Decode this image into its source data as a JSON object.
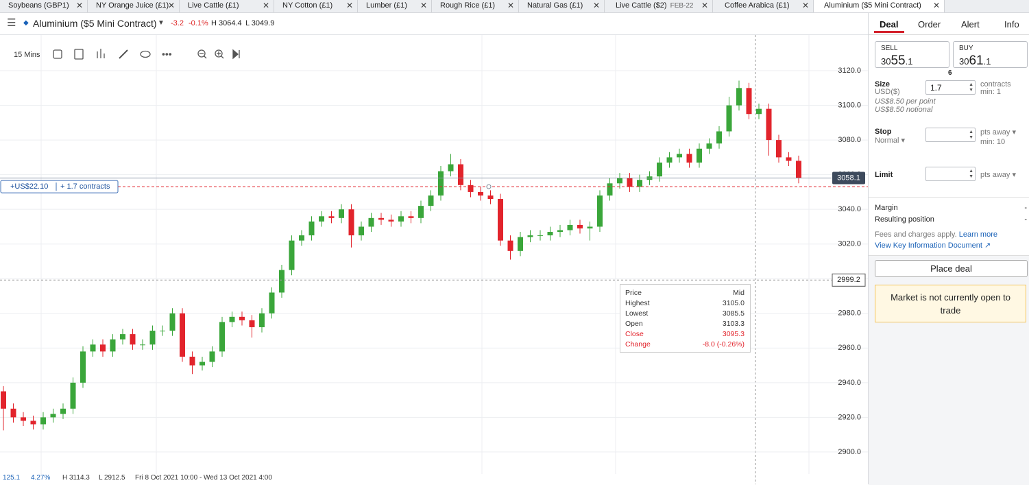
{
  "tabs": [
    {
      "label": "Soybeans (GBP1)"
    },
    {
      "label": "NY Orange Juice (£1)"
    },
    {
      "label": "Live Cattle (£1)"
    },
    {
      "label": "NY Cotton (£1)"
    },
    {
      "label": "Lumber (£1)"
    },
    {
      "label": "Rough Rice (£1)"
    },
    {
      "label": "Natural Gas (£1)"
    },
    {
      "label": "Live Cattle ($2)",
      "expiry": "FEB-22"
    },
    {
      "label": "Coffee Arabica (£1)"
    },
    {
      "label": "Aluminium ($5 Mini Contract)"
    }
  ],
  "header": {
    "instrument": "Aluminium ($5 Mini Contract)",
    "change": "-3.2",
    "change_pct": "-0.1%",
    "high": "H 3064.4",
    "low": "L 3049.9"
  },
  "toolbar": {
    "interval": "15 Mins"
  },
  "chart_data": {
    "type": "candlestick",
    "open": [
      2935,
      2925,
      2920,
      2918,
      2916,
      2920,
      2922,
      2925,
      2940,
      2958,
      2962,
      2958,
      2965,
      2968,
      2962,
      2962,
      2970,
      2970,
      2980,
      2955,
      2950,
      2952,
      2958,
      2975,
      2978,
      2976,
      2972,
      2980,
      2992,
      3005,
      3022,
      3025,
      3033,
      3036,
      3035,
      3040,
      3025,
      3030,
      3035,
      3034,
      3033,
      3036,
      3035,
      3042,
      3048,
      3062,
      3066,
      3054,
      3050,
      3048,
      3046,
      3022,
      3016,
      3024,
      3025,
      3025,
      3027,
      3028,
      3031,
      3029,
      3030,
      3048,
      3055,
      3058,
      3053,
      3057,
      3059,
      3067,
      3070,
      3072,
      3067,
      3075,
      3078,
      3085,
      3100,
      3110,
      3095,
      3098,
      3080,
      3070,
      3068
    ],
    "high": [
      2938,
      2928,
      2923,
      2921,
      2923,
      2925,
      2928,
      2943,
      2961,
      2965,
      2965,
      2968,
      2971,
      2971,
      2965,
      2973,
      2973,
      2983,
      2983,
      2958,
      2955,
      2961,
      2978,
      2981,
      2981,
      2979,
      2983,
      2995,
      3008,
      3025,
      3028,
      3036,
      3039,
      3039,
      3043,
      3043,
      3033,
      3038,
      3038,
      3037,
      3039,
      3039,
      3045,
      3051,
      3065,
      3072,
      3069,
      3057,
      3053,
      3051,
      3049,
      3025,
      3027,
      3028,
      3028,
      3030,
      3031,
      3034,
      3034,
      3033,
      3051,
      3058,
      3061,
      3061,
      3060,
      3062,
      3070,
      3073,
      3075,
      3075,
      3078,
      3081,
      3088,
      3105,
      3114.3,
      3113,
      3101,
      3101,
      3083,
      3073,
      3071
    ],
    "low": [
      2912.5,
      2917,
      2915,
      2913,
      2913,
      2917,
      2919,
      2922,
      2937,
      2955,
      2955,
      2955,
      2962,
      2959,
      2959,
      2959,
      2967,
      2967,
      2952,
      2945,
      2947,
      2949,
      2955,
      2972,
      2973,
      2966,
      2969,
      2977,
      2989,
      3002,
      3019,
      3022,
      3030,
      3032,
      3032,
      3018,
      3022,
      3027,
      3031,
      3030,
      3030,
      3032,
      3032,
      3039,
      3045,
      3059,
      3051,
      3047,
      3045,
      3043,
      3019,
      3011,
      3013,
      3021,
      3022,
      3022,
      3024,
      3025,
      3026,
      3022,
      3027,
      3045,
      3052,
      3050,
      3050,
      3054,
      3056,
      3064,
      3067,
      3064,
      3064,
      3072,
      3075,
      3082,
      3097,
      3092,
      3092,
      3071,
      3067,
      3065,
      3055
    ],
    "close": [
      2925,
      2920,
      2918,
      2916,
      2920,
      2922,
      2925,
      2940,
      2958,
      2962,
      2958,
      2965,
      2968,
      2962,
      2962,
      2970,
      2970,
      2980,
      2955,
      2950,
      2952,
      2958,
      2975,
      2978,
      2976,
      2972,
      2980,
      2992,
      3005,
      3022,
      3025,
      3033,
      3036,
      3035,
      3040,
      3025,
      3030,
      3035,
      3034,
      3033,
      3036,
      3035,
      3042,
      3048,
      3062,
      3066,
      3054,
      3050,
      3048,
      3046,
      3022,
      3016,
      3024,
      3025,
      3025,
      3027,
      3028,
      3031,
      3029,
      3030,
      3048,
      3055,
      3058,
      3053,
      3057,
      3059,
      3067,
      3070,
      3072,
      3067,
      3075,
      3078,
      3085,
      3100,
      3110,
      3095,
      3098,
      3080,
      3070,
      3068,
      3058
    ],
    "up_color": "#3aa63a",
    "down_color": "#e2242c",
    "ylim": [
      2887.3,
      3140.6
    ],
    "yticks": [
      {
        "value": 2900,
        "label": "2900.0"
      },
      {
        "value": 2920,
        "label": "2920.0"
      },
      {
        "value": 2940,
        "label": "2940.0"
      },
      {
        "value": 2960,
        "label": "2960.0"
      },
      {
        "value": 2980,
        "label": "2980.0"
      },
      {
        "value": 3000,
        "label": "3000.0"
      },
      {
        "value": 3020,
        "label": "3020.0"
      },
      {
        "value": 3040,
        "label": "3040.0"
      },
      {
        "value": 3060,
        "label": "3060.0"
      },
      {
        "value": 3080,
        "label": "3080.0"
      },
      {
        "value": 3100,
        "label": "3100.0"
      },
      {
        "value": 3120,
        "label": "3120.0"
      }
    ],
    "grid": true,
    "current_price": 3058.1,
    "crosshair_price": 2999.2,
    "position": {
      "level": 3053.1,
      "pnl": "+US$22.10",
      "size": "+ 1.7 contracts"
    }
  },
  "tooltip": {
    "rows": [
      [
        "Price",
        "Mid"
      ],
      [
        "Highest",
        "3105.0"
      ],
      [
        "Lowest",
        "3085.5"
      ],
      [
        "Open",
        "3103.3"
      ],
      [
        "Close",
        "3095.3"
      ],
      [
        "Change",
        "-8.0 (-0.26%)"
      ]
    ]
  },
  "footer": {
    "last": "125.1",
    "pct": "4.27%",
    "high": "H 3114.3",
    "low": "L 2912.5",
    "range": "Fri 8 Oct 2021 10:00 - Wed 13 Oct 2021 4:00"
  },
  "deal_panel": {
    "tabs": [
      "Deal",
      "Order",
      "Alert",
      "Info"
    ],
    "sell": {
      "label": "SELL",
      "prefix": "30",
      "big": "55",
      "suffix": ".1"
    },
    "buy": {
      "label": "BUY",
      "prefix": "30",
      "big": "61",
      "suffix": ".1"
    },
    "spread": "6",
    "size": {
      "label": "Size",
      "currency": "USD($)",
      "input": "1.7",
      "unit": "contracts",
      "min": "min: 1",
      "per_point": "US$8.50 per point",
      "notional": "US$8.50 notional"
    },
    "stop": {
      "label": "Stop",
      "mode": "Normal",
      "unit": "pts away",
      "min": "min: 10"
    },
    "limit": {
      "label": "Limit",
      "unit": "pts away"
    },
    "margin": {
      "label": "Margin",
      "value": "-"
    },
    "resulting": {
      "label": "Resulting position",
      "value": "-"
    },
    "fees": "Fees and charges apply.",
    "learn_more": "Learn more",
    "kid": "View Key Information Document",
    "button": "Place deal",
    "notice": "Market is not currently open to trade"
  }
}
